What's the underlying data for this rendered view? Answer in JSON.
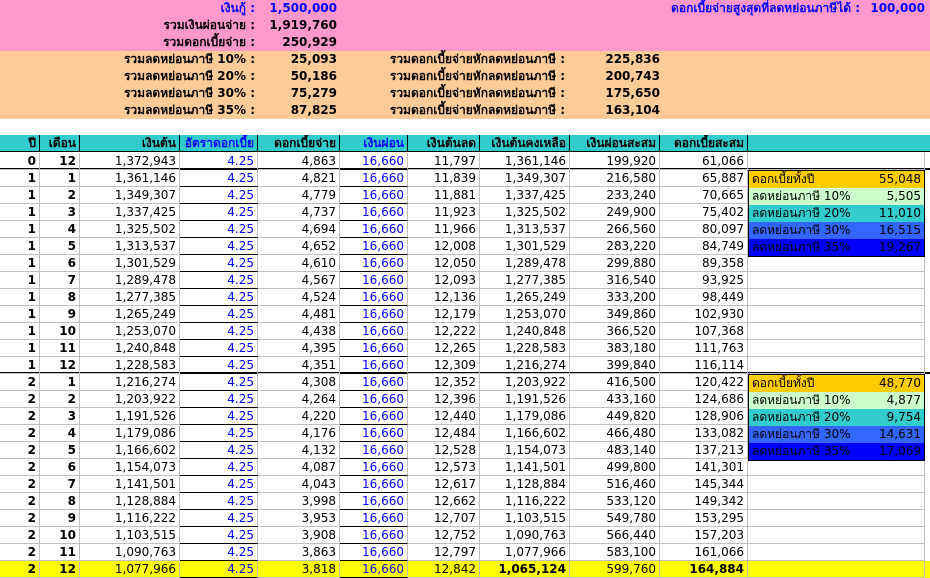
{
  "summary": {
    "loan_label": "เงินกู้ :",
    "loan_value": "1,500,000",
    "total_paid_label": "รวมเงินผ่อนจ่าย :",
    "total_paid_value": "1,919,760",
    "total_interest_label": "รวมดอกเบี้ยจ่าย :",
    "total_interest_value": "250,929",
    "max_interest_label": "ดอกเบี้ยจ่ายสูงสุดที่ลดหย่อนภาษีได้ :",
    "max_interest_value": "100,000",
    "tax_rows": [
      {
        "label": "รวมลดหย่อนภาษี 10% :",
        "value": "25,093",
        "net_label": "รวมดอกเบี้ยจ่ายหักลดหย่อนภาษี :",
        "net_value": "225,836"
      },
      {
        "label": "รวมลดหย่อนภาษี 20% :",
        "value": "50,186",
        "net_label": "รวมดอกเบี้ยจ่ายหักลดหย่อนภาษี :",
        "net_value": "200,743"
      },
      {
        "label": "รวมลดหย่อนภาษี 30% :",
        "value": "75,279",
        "net_label": "รวมดอกเบี้ยจ่ายหักลดหย่อนภาษี :",
        "net_value": "175,650"
      },
      {
        "label": "รวมลดหย่อนภาษี 35% :",
        "value": "87,825",
        "net_label": "รวมดอกเบี้ยจ่ายหักลดหย่อนภาษี :",
        "net_value": "163,104"
      }
    ]
  },
  "table": {
    "headers": [
      "ปี",
      "เดือน",
      "เงินต้น",
      "อัตราดอกเบี้ย",
      "ดอกเบี้ยจ่าย",
      "เงินผ่อน",
      "เงินต้นลด",
      "เงินต้นคงเหลือ",
      "เงินผ่อนสะสม",
      "ดอกเบี้ยสะสม"
    ],
    "rows": [
      [
        "0",
        "12",
        "1,372,943",
        "4.25",
        "4,863",
        "16,660",
        "11,797",
        "1,361,146",
        "199,920",
        "61,066"
      ],
      [
        "1",
        "1",
        "1,361,146",
        "4.25",
        "4,821",
        "16,660",
        "11,839",
        "1,349,307",
        "216,580",
        "65,887"
      ],
      [
        "1",
        "2",
        "1,349,307",
        "4.25",
        "4,779",
        "16,660",
        "11,881",
        "1,337,425",
        "233,240",
        "70,665"
      ],
      [
        "1",
        "3",
        "1,337,425",
        "4.25",
        "4,737",
        "16,660",
        "11,923",
        "1,325,502",
        "249,900",
        "75,402"
      ],
      [
        "1",
        "4",
        "1,325,502",
        "4.25",
        "4,694",
        "16,660",
        "11,966",
        "1,313,537",
        "266,560",
        "80,097"
      ],
      [
        "1",
        "5",
        "1,313,537",
        "4.25",
        "4,652",
        "16,660",
        "12,008",
        "1,301,529",
        "283,220",
        "84,749"
      ],
      [
        "1",
        "6",
        "1,301,529",
        "4.25",
        "4,610",
        "16,660",
        "12,050",
        "1,289,478",
        "299,880",
        "89,358"
      ],
      [
        "1",
        "7",
        "1,289,478",
        "4.25",
        "4,567",
        "16,660",
        "12,093",
        "1,277,385",
        "316,540",
        "93,925"
      ],
      [
        "1",
        "8",
        "1,277,385",
        "4.25",
        "4,524",
        "16,660",
        "12,136",
        "1,265,249",
        "333,200",
        "98,449"
      ],
      [
        "1",
        "9",
        "1,265,249",
        "4.25",
        "4,481",
        "16,660",
        "12,179",
        "1,253,070",
        "349,860",
        "102,930"
      ],
      [
        "1",
        "10",
        "1,253,070",
        "4.25",
        "4,438",
        "16,660",
        "12,222",
        "1,240,848",
        "366,520",
        "107,368"
      ],
      [
        "1",
        "11",
        "1,240,848",
        "4.25",
        "4,395",
        "16,660",
        "12,265",
        "1,228,583",
        "383,180",
        "111,763"
      ],
      [
        "1",
        "12",
        "1,228,583",
        "4.25",
        "4,351",
        "16,660",
        "12,309",
        "1,216,274",
        "399,840",
        "116,114"
      ],
      [
        "2",
        "1",
        "1,216,274",
        "4.25",
        "4,308",
        "16,660",
        "12,352",
        "1,203,922",
        "416,500",
        "120,422"
      ],
      [
        "2",
        "2",
        "1,203,922",
        "4.25",
        "4,264",
        "16,660",
        "12,396",
        "1,191,526",
        "433,160",
        "124,686"
      ],
      [
        "2",
        "3",
        "1,191,526",
        "4.25",
        "4,220",
        "16,660",
        "12,440",
        "1,179,086",
        "449,820",
        "128,906"
      ],
      [
        "2",
        "4",
        "1,179,086",
        "4.25",
        "4,176",
        "16,660",
        "12,484",
        "1,166,602",
        "466,480",
        "133,082"
      ],
      [
        "2",
        "5",
        "1,166,602",
        "4.25",
        "4,132",
        "16,660",
        "12,528",
        "1,154,073",
        "483,140",
        "137,213"
      ],
      [
        "2",
        "6",
        "1,154,073",
        "4.25",
        "4,087",
        "16,660",
        "12,573",
        "1,141,501",
        "499,800",
        "141,301"
      ],
      [
        "2",
        "7",
        "1,141,501",
        "4.25",
        "4,043",
        "16,660",
        "12,617",
        "1,128,884",
        "516,460",
        "145,344"
      ],
      [
        "2",
        "8",
        "1,128,884",
        "4.25",
        "3,998",
        "16,660",
        "12,662",
        "1,116,222",
        "533,120",
        "149,342"
      ],
      [
        "2",
        "9",
        "1,116,222",
        "4.25",
        "3,953",
        "16,660",
        "12,707",
        "1,103,515",
        "549,780",
        "153,295"
      ],
      [
        "2",
        "10",
        "1,103,515",
        "4.25",
        "3,908",
        "16,660",
        "12,752",
        "1,090,763",
        "566,440",
        "157,203"
      ],
      [
        "2",
        "11",
        "1,090,763",
        "4.25",
        "3,863",
        "16,660",
        "12,797",
        "1,077,966",
        "583,100",
        "161,066"
      ],
      [
        "2",
        "12",
        "1,077,966",
        "4.25",
        "3,818",
        "16,660",
        "12,842",
        "1,065,124",
        "599,760",
        "164,884"
      ]
    ]
  },
  "panels": [
    {
      "rows": [
        [
          "ดอกเบี้ยทั้งปี",
          "55,048"
        ],
        [
          "ลดหย่อนภาษี 10%",
          "5,505"
        ],
        [
          "ลดหย่อนภาษี 20%",
          "11,010"
        ],
        [
          "ลดหย่อนภาษี 30%",
          "16,515"
        ],
        [
          "ลดหย่อนภาษี 35%",
          "19,267"
        ]
      ]
    },
    {
      "rows": [
        [
          "ดอกเบี้ยทั้งปี",
          "48,770"
        ],
        [
          "ลดหย่อนภาษี 10%",
          "4,877"
        ],
        [
          "ลดหย่อนภาษี 20%",
          "9,754"
        ],
        [
          "ลดหย่อนภาษี 30%",
          "14,631"
        ],
        [
          "ลดหย่อนภาษี 35%",
          "17,069"
        ]
      ]
    }
  ],
  "colors": {
    "pink": "#ff99cc",
    "orange": "#ffcc99",
    "header": "#33cccc",
    "highlight": "#ffff00",
    "panel": [
      "#ffcc00",
      "#ccffcc",
      "#33cccc",
      "#3366ff",
      "#0000ff"
    ]
  }
}
